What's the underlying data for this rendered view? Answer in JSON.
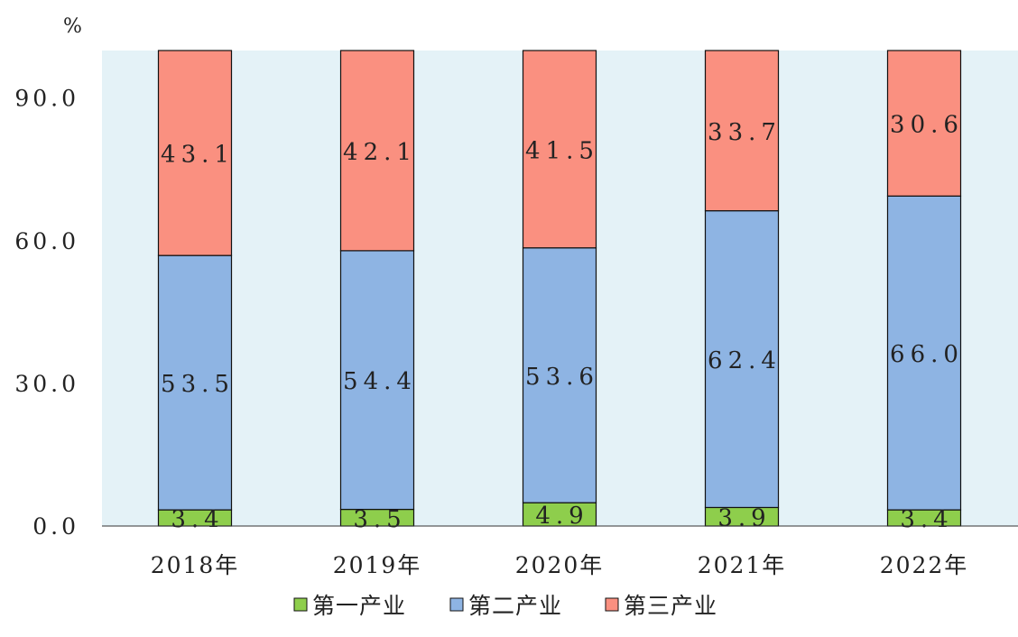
{
  "chart_data": {
    "type": "bar",
    "stacked": true,
    "unit": "%",
    "categories": [
      "2018年",
      "2019年",
      "2020年",
      "2021年",
      "2022年"
    ],
    "series": [
      {
        "name": "第一产业",
        "color": "#8ece4c",
        "values": [
          3.4,
          3.5,
          4.9,
          3.9,
          3.4
        ]
      },
      {
        "name": "第二产业",
        "color": "#8eb4e3",
        "values": [
          53.5,
          54.4,
          53.6,
          62.4,
          66.0
        ]
      },
      {
        "name": "第三产业",
        "color": "#fa9080",
        "values": [
          43.1,
          42.1,
          41.5,
          33.7,
          30.6
        ]
      }
    ],
    "yticks": [
      "0.0",
      "30.0",
      "60.0",
      "90.0"
    ],
    "ylim": [
      0,
      100
    ],
    "plot_background": "#e4f2f7",
    "legend_position": "bottom",
    "grid": false
  }
}
